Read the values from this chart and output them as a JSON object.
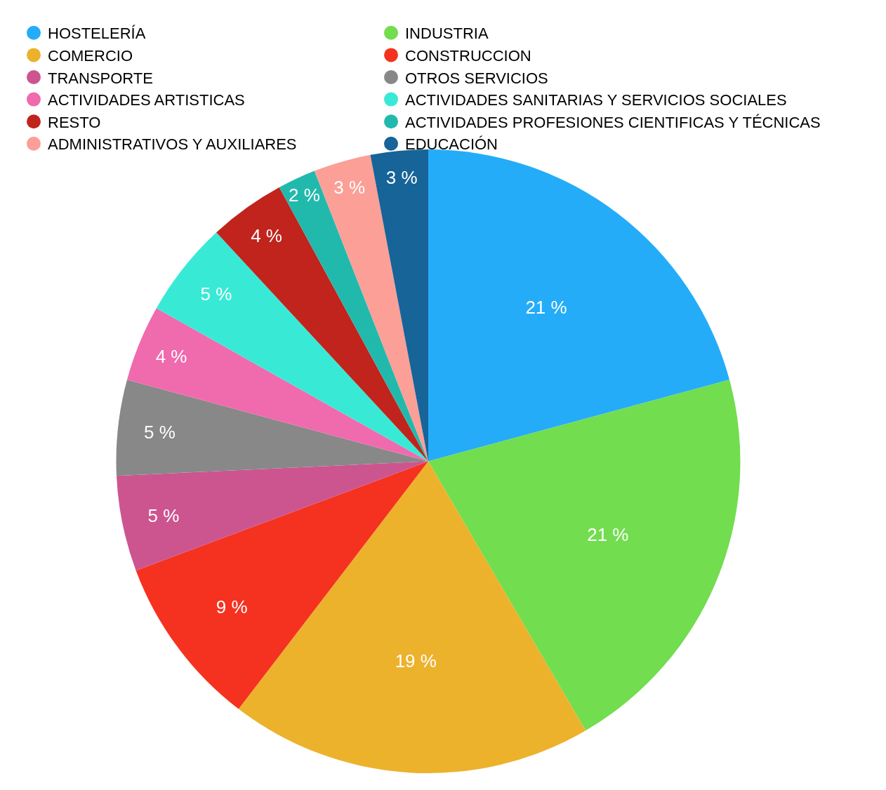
{
  "chart_data": {
    "type": "pie",
    "categories": [
      "HOSTELERÍA",
      "INDUSTRIA",
      "COMERCIO",
      "CONSTRUCCION",
      "TRANSPORTE",
      "OTROS SERVICIOS",
      "ACTIVIDADES ARTISTICAS",
      "ACTIVIDADES SANITARIAS Y SERVICIOS SOCIALES",
      "RESTO",
      "ACTIVIDADES PROFESIONES CIENTIFICAS Y TÉCNICAS",
      "ADMINISTRATIVOS Y AUXILIARES",
      "EDUCACIÓN"
    ],
    "values": [
      21,
      21,
      19,
      9,
      5,
      5,
      4,
      5,
      4,
      2,
      3,
      3
    ],
    "value_labels": [
      "21 %",
      "21 %",
      "19 %",
      "9 %",
      "5 %",
      "5 %",
      "4 %",
      "5 %",
      "4 %",
      "2 %",
      "3 %",
      "3 %"
    ],
    "colors": [
      "#24acf8",
      "#72dd4e",
      "#ecb22c",
      "#f5321f",
      "#cc5590",
      "#888888",
      "#f06aae",
      "#38ead6",
      "#c0241c",
      "#22b9ad",
      "#fb9f97",
      "#166498"
    ],
    "legend": "top"
  }
}
